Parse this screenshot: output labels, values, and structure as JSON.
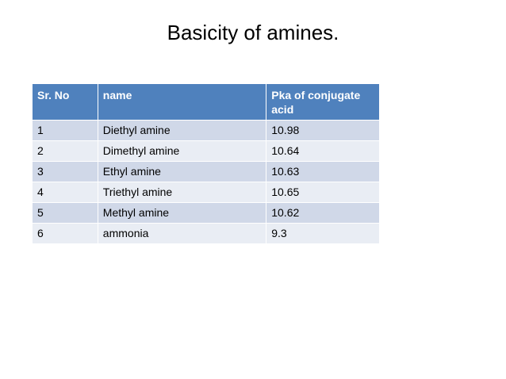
{
  "title": "Basicity of amines.",
  "table": {
    "headers": [
      "Sr. No",
      "name",
      "Pka of conjugate acid"
    ],
    "rows": [
      [
        "1",
        "Diethyl amine",
        "10.98"
      ],
      [
        "2",
        "Dimethyl amine",
        "10.64"
      ],
      [
        "3",
        "Ethyl amine",
        "10.63"
      ],
      [
        "4",
        "Triethyl amine",
        "10.65"
      ],
      [
        "5",
        "Methyl amine",
        "10.62"
      ],
      [
        "6",
        "ammonia",
        "9.3"
      ]
    ]
  },
  "colors": {
    "header_bg": "#4f81bd",
    "row_odd": "#d0d8e8",
    "row_even": "#e9edf4"
  }
}
